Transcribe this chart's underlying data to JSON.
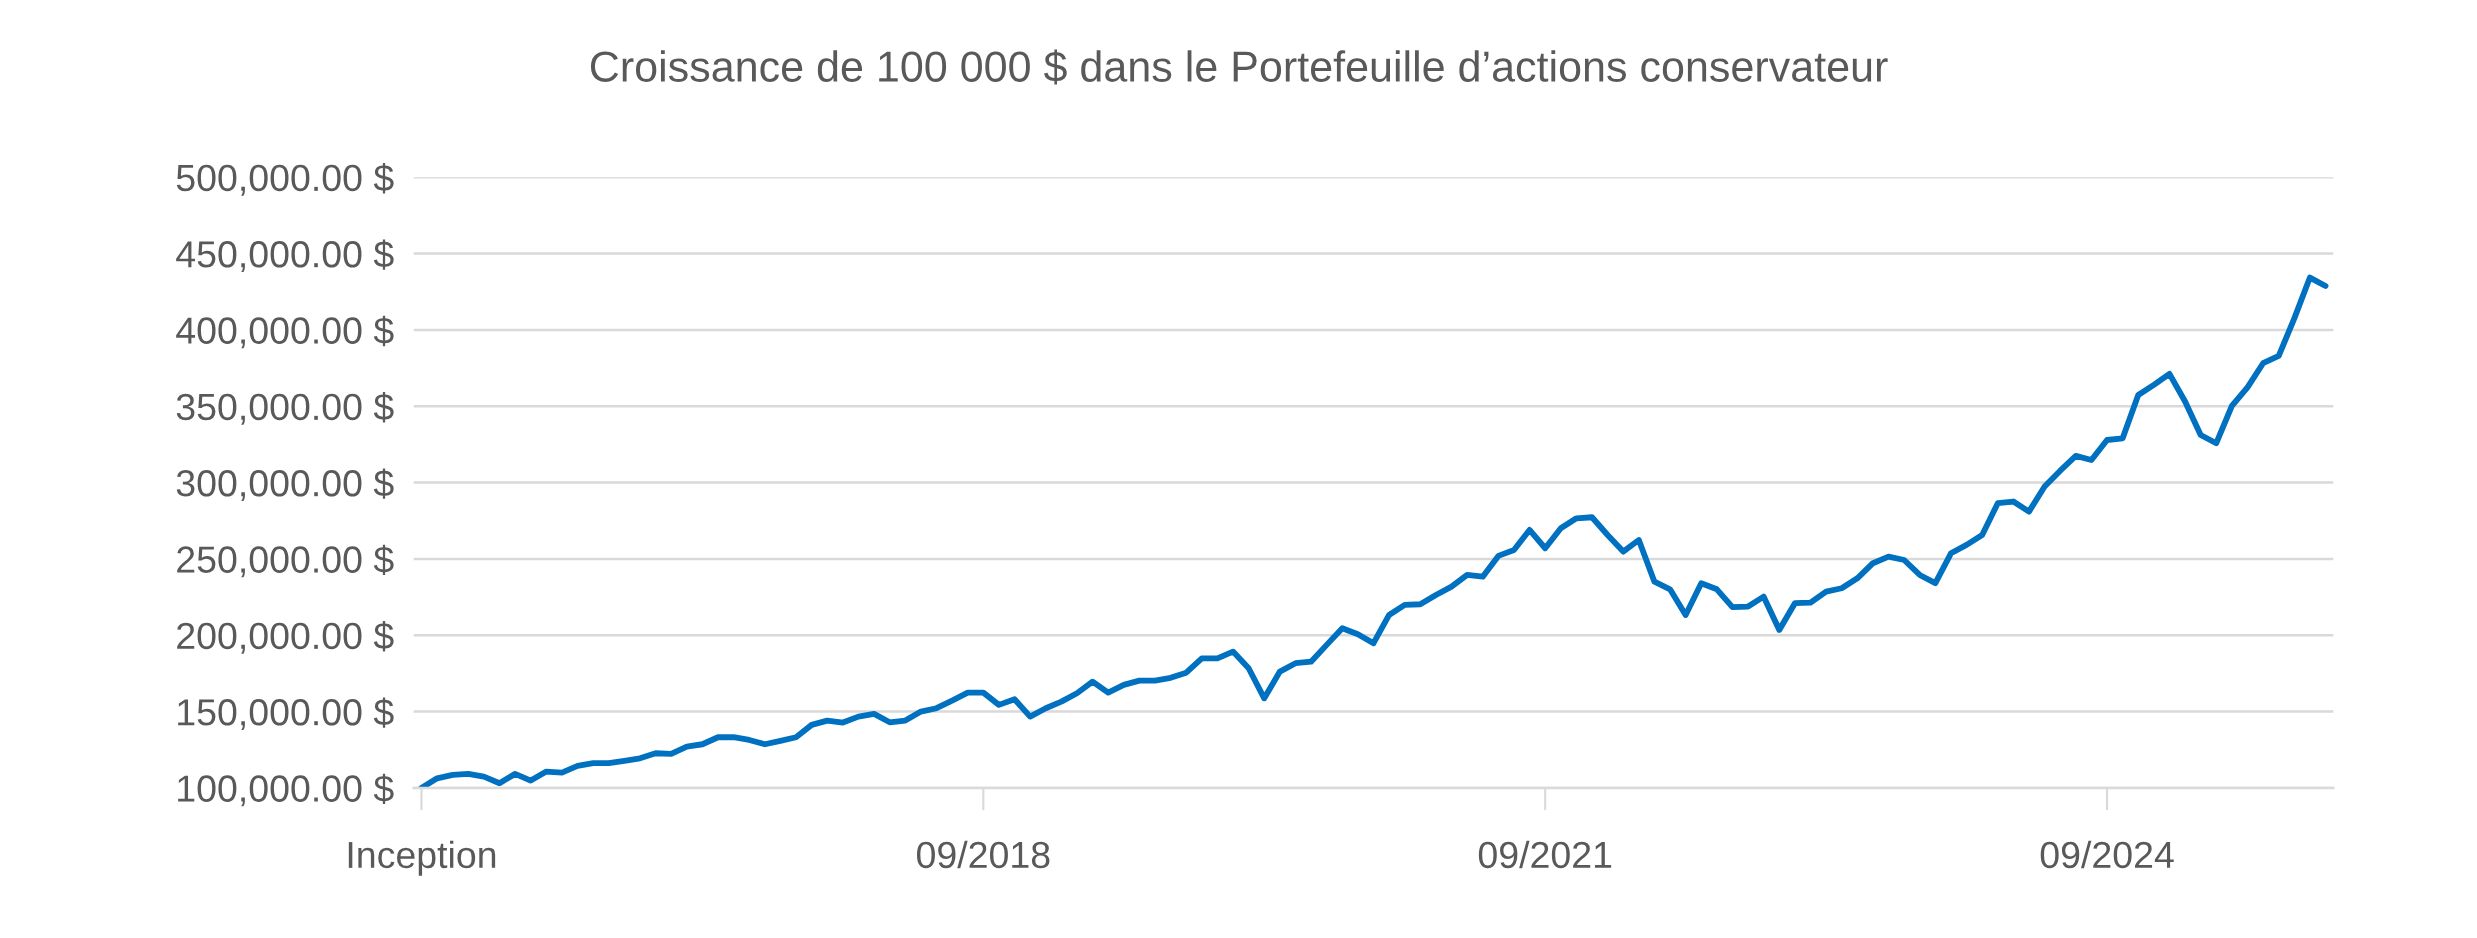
{
  "chart_data": {
    "type": "line",
    "title": "Croissance de 100 000 $ dans le Portefeuille d’actions conservateur",
    "categories": [
      "Inception",
      null,
      null,
      null,
      null,
      null,
      null,
      null,
      null,
      null,
      null,
      null,
      null,
      null,
      null,
      null,
      null,
      null,
      null,
      null,
      null,
      null,
      null,
      null,
      null,
      null,
      null,
      null,
      null,
      null,
      null,
      null,
      null,
      null,
      null,
      null,
      "09/2018",
      null,
      null,
      null,
      null,
      null,
      null,
      null,
      null,
      null,
      null,
      null,
      null,
      null,
      null,
      null,
      null,
      null,
      null,
      null,
      null,
      null,
      null,
      null,
      null,
      null,
      null,
      null,
      null,
      null,
      null,
      null,
      null,
      null,
      null,
      null,
      "09/2021",
      null,
      null,
      null,
      null,
      null,
      null,
      null,
      null,
      null,
      null,
      null,
      null,
      null,
      null,
      null,
      null,
      null,
      null,
      null,
      null,
      null,
      null,
      null,
      null,
      null,
      null,
      null,
      null,
      null,
      null,
      null,
      null,
      null,
      null,
      null,
      "09/2024",
      null,
      null,
      null,
      null,
      null,
      null,
      null,
      null,
      null,
      null,
      null,
      null,
      null,
      null
    ],
    "series": [
      {
        "color": "#0070c0",
        "values": [
          100000,
          106300,
          108500,
          109200,
          107400,
          103100,
          109200,
          104800,
          110700,
          110000,
          114400,
          116200,
          116200,
          117700,
          119400,
          122700,
          122300,
          127100,
          128600,
          133200,
          133200,
          131400,
          128600,
          130800,
          133200,
          141300,
          144100,
          142800,
          146700,
          148500,
          143000,
          144100,
          150000,
          152200,
          157200,
          162400,
          162400,
          154400,
          158100,
          146700,
          152200,
          156500,
          162000,
          169600,
          162400,
          167500,
          170300,
          170300,
          172100,
          175500,
          184900,
          184900,
          189300,
          178400,
          158700,
          176200,
          181700,
          182700,
          193700,
          204600,
          200700,
          194800,
          213300,
          219900,
          220300,
          226400,
          231900,
          239500,
          238400,
          252000,
          255900,
          269000,
          257000,
          270100,
          276600,
          277300,
          265700,
          254800,
          262400,
          235100,
          230100,
          213300,
          234100,
          230100,
          218400,
          218800,
          225300,
          203500,
          221000,
          221400,
          228600,
          230800,
          237300,
          247200,
          251500,
          249300,
          239500,
          234100,
          253700,
          259200,
          265700,
          286500,
          287600,
          281000,
          297400,
          307800,
          317500,
          314800,
          327900,
          329000,
          357400,
          364000,
          371200,
          353100,
          331200,
          325800,
          350200,
          362400,
          378200,
          383000,
          407600,
          434300,
          428800
        ]
      }
    ],
    "ylim": [
      100000,
      500000
    ],
    "yticks": [
      {
        "value": 100000,
        "label": "100,000.00 $"
      },
      {
        "value": 150000,
        "label": "150,000.00 $"
      },
      {
        "value": 200000,
        "label": "200,000.00 $"
      },
      {
        "value": 250000,
        "label": "250,000.00 $"
      },
      {
        "value": 300000,
        "label": "300,000.00 $"
      },
      {
        "value": 350000,
        "label": "350,000.00 $"
      },
      {
        "value": 400000,
        "label": "400,000.00 $"
      },
      {
        "value": 450000,
        "label": "450,000.00 $"
      },
      {
        "value": 500000,
        "label": "500,000.00 $"
      }
    ],
    "grid": "y",
    "marker": "none",
    "line_style": "solid"
  }
}
